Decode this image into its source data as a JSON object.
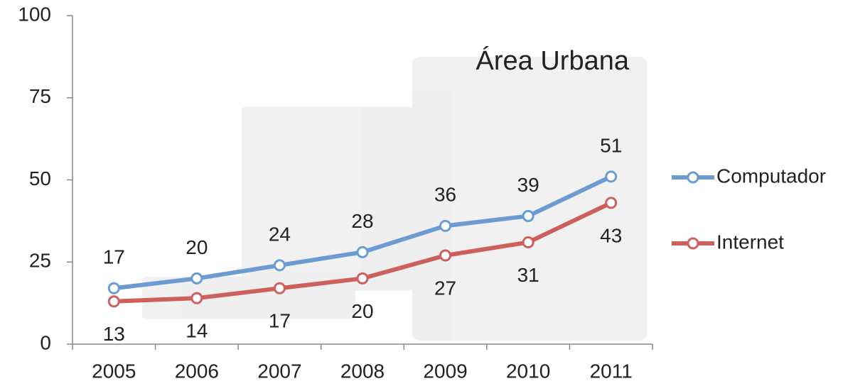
{
  "chart_data": {
    "type": "line",
    "title": "Área Urbana",
    "categories": [
      "2005",
      "2006",
      "2007",
      "2008",
      "2009",
      "2010",
      "2011"
    ],
    "series": [
      {
        "name": "Computador",
        "color": "#6b9bd1",
        "values": [
          17,
          20,
          24,
          28,
          36,
          39,
          51
        ]
      },
      {
        "name": "Internet",
        "color": "#cd5f5c",
        "values": [
          13,
          14,
          17,
          20,
          27,
          31,
          43
        ]
      }
    ],
    "ylim": [
      0,
      100
    ],
    "yticks": [
      0,
      25,
      50,
      75,
      100
    ],
    "grid": false,
    "legend": "right"
  }
}
